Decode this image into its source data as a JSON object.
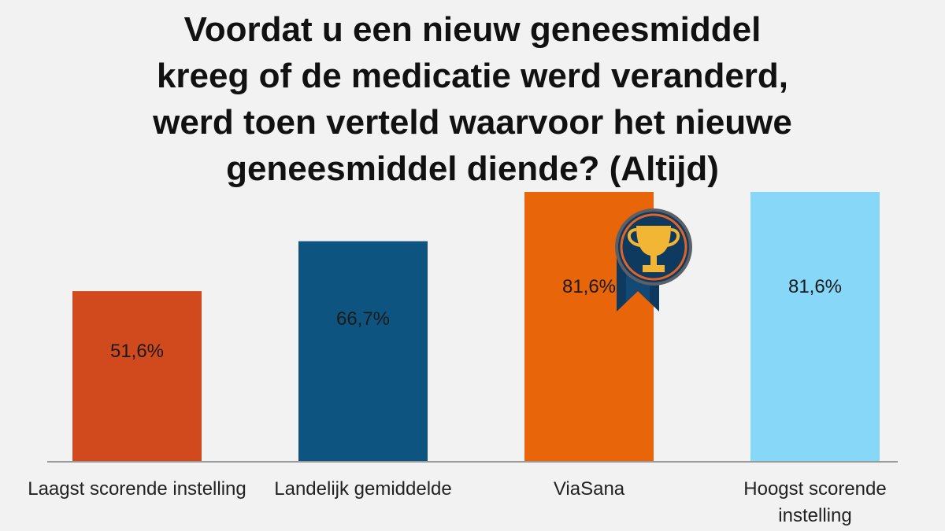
{
  "chart_data": {
    "type": "bar",
    "title": "Voordat u een nieuw geneesmiddel\nkreeg of de medicatie werd veranderd,\nwerd toen verteld waarvoor het nieuwe\ngeneesmiddel diende? (Altijd)",
    "categories": [
      "Laagst scorende instelling",
      "Landelijk gemiddelde",
      "ViaSana",
      "Hoogst scorende instelling"
    ],
    "values": [
      51.6,
      66.7,
      81.6,
      81.6
    ],
    "value_labels": [
      "51,6%",
      "66,7%",
      "81,6%",
      "81,6%"
    ],
    "colors": [
      "#d04a1e",
      "#0d5580",
      "#e8650a",
      "#87d7f8"
    ],
    "ylim": [
      0,
      81.6
    ],
    "xlabel": "",
    "ylabel": "",
    "grid": false,
    "legend": "none"
  },
  "badge": {
    "icon": "trophy-icon",
    "category": "ViaSana"
  }
}
